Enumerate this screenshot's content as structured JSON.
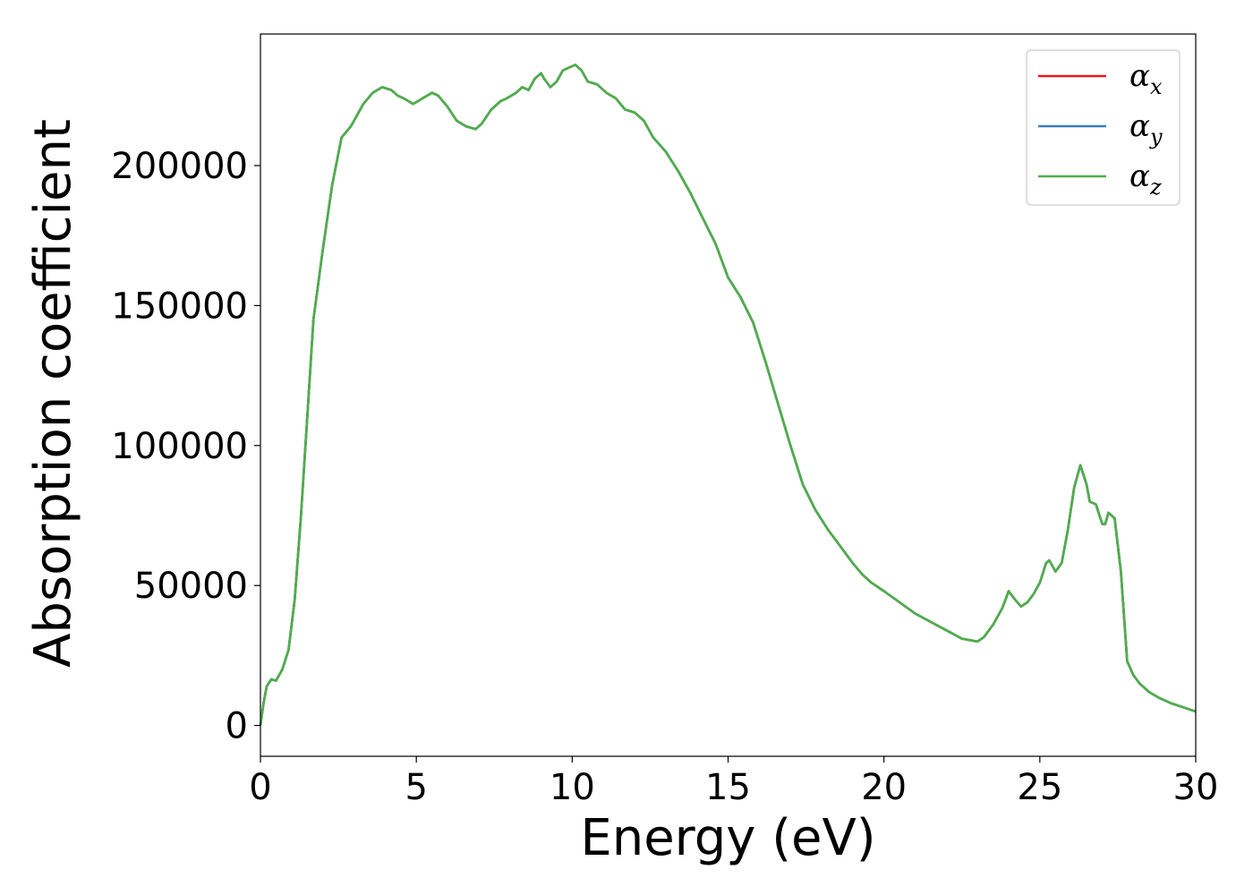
{
  "chart_data": {
    "type": "line",
    "title": "",
    "xlabel": "Energy (eV)",
    "ylabel": "Absorption coefficient",
    "xlim": [
      0,
      30
    ],
    "ylim": [
      -11000,
      247000
    ],
    "xticks": [
      0,
      5,
      10,
      15,
      20,
      25,
      30
    ],
    "xtick_labels": [
      "0",
      "5",
      "10",
      "15",
      "20",
      "25",
      "30"
    ],
    "yticks": [
      0,
      50000,
      100000,
      150000,
      200000
    ],
    "ytick_labels": [
      "0",
      "50000",
      "100000",
      "150000",
      "200000"
    ],
    "grid": false,
    "legend": "top-right",
    "x": [
      0,
      0.1,
      0.2,
      0.35,
      0.5,
      0.7,
      0.9,
      1.1,
      1.3,
      1.5,
      1.7,
      2.0,
      2.3,
      2.6,
      2.9,
      3.1,
      3.3,
      3.6,
      3.9,
      4.2,
      4.4,
      4.6,
      4.9,
      5.2,
      5.5,
      5.7,
      6.0,
      6.3,
      6.6,
      6.9,
      7.1,
      7.4,
      7.7,
      7.9,
      8.2,
      8.4,
      8.6,
      8.8,
      9.0,
      9.1,
      9.3,
      9.5,
      9.7,
      9.9,
      10.1,
      10.3,
      10.5,
      10.8,
      11.1,
      11.4,
      11.7,
      12.0,
      12.3,
      12.6,
      13.0,
      13.4,
      13.8,
      14.2,
      14.6,
      15.0,
      15.4,
      15.8,
      16.2,
      16.6,
      17.0,
      17.4,
      17.8,
      18.2,
      18.6,
      19.0,
      19.3,
      19.6,
      20.0,
      20.5,
      21.0,
      21.5,
      22.0,
      22.5,
      23.0,
      23.2,
      23.5,
      23.8,
      24.0,
      24.2,
      24.4,
      24.6,
      24.8,
      25.0,
      25.2,
      25.3,
      25.5,
      25.7,
      25.9,
      26.1,
      26.3,
      26.5,
      26.6,
      26.8,
      27.0,
      27.1,
      27.2,
      27.4,
      27.6,
      27.8,
      28.0,
      28.2,
      28.5,
      28.8,
      29.2,
      29.6,
      30.0
    ],
    "series": [
      {
        "name": "α",
        "sub": "x",
        "color": "#e41a1c",
        "values": [
          0,
          8000,
          14000,
          16500,
          16000,
          20000,
          27000,
          45000,
          75000,
          110000,
          145000,
          170000,
          193000,
          210000,
          214000,
          218000,
          222000,
          226000,
          228000,
          227000,
          225000,
          224000,
          222000,
          224000,
          226000,
          225000,
          221000,
          216000,
          214000,
          213000,
          215000,
          220000,
          223000,
          224000,
          226000,
          228000,
          227000,
          231000,
          233000,
          231000,
          228000,
          230000,
          234000,
          235000,
          236000,
          234000,
          230000,
          229000,
          226000,
          224000,
          220000,
          219000,
          216000,
          210000,
          205000,
          198000,
          190000,
          181000,
          172000,
          160000,
          153000,
          144000,
          130000,
          115000,
          100000,
          86000,
          77000,
          70000,
          64000,
          58000,
          54000,
          51000,
          48000,
          44000,
          40000,
          37000,
          34000,
          31000,
          30000,
          31500,
          36000,
          42000,
          48000,
          45000,
          42500,
          44000,
          47000,
          51000,
          58000,
          59000,
          55000,
          58000,
          70000,
          85000,
          93000,
          86000,
          80000,
          79000,
          72000,
          72000,
          76000,
          74000,
          55000,
          23000,
          18000,
          15000,
          12000,
          10000,
          8000,
          6500,
          5000
        ]
      },
      {
        "name": "α",
        "sub": "y",
        "color": "#377eb8",
        "values": [
          0,
          8000,
          14000,
          16500,
          16000,
          20000,
          27000,
          45000,
          75000,
          110000,
          145000,
          170000,
          193000,
          210000,
          214000,
          218000,
          222000,
          226000,
          228000,
          227000,
          225000,
          224000,
          222000,
          224000,
          226000,
          225000,
          221000,
          216000,
          214000,
          213000,
          215000,
          220000,
          223000,
          224000,
          226000,
          228000,
          227000,
          231000,
          233000,
          231000,
          228000,
          230000,
          234000,
          235000,
          236000,
          234000,
          230000,
          229000,
          226000,
          224000,
          220000,
          219000,
          216000,
          210000,
          205000,
          198000,
          190000,
          181000,
          172000,
          160000,
          153000,
          144000,
          130000,
          115000,
          100000,
          86000,
          77000,
          70000,
          64000,
          58000,
          54000,
          51000,
          48000,
          44000,
          40000,
          37000,
          34000,
          31000,
          30000,
          31500,
          36000,
          42000,
          48000,
          45000,
          42500,
          44000,
          47000,
          51000,
          58000,
          59000,
          55000,
          58000,
          70000,
          85000,
          93000,
          86000,
          80000,
          79000,
          72000,
          72000,
          76000,
          74000,
          55000,
          23000,
          18000,
          15000,
          12000,
          10000,
          8000,
          6500,
          5000
        ]
      },
      {
        "name": "α",
        "sub": "z",
        "color": "#4daf4a",
        "values": [
          0,
          8000,
          14000,
          16500,
          16000,
          20000,
          27000,
          45000,
          75000,
          110000,
          145000,
          170000,
          193000,
          210000,
          214000,
          218000,
          222000,
          226000,
          228000,
          227000,
          225000,
          224000,
          222000,
          224000,
          226000,
          225000,
          221000,
          216000,
          214000,
          213000,
          215000,
          220000,
          223000,
          224000,
          226000,
          228000,
          227000,
          231000,
          233000,
          231000,
          228000,
          230000,
          234000,
          235000,
          236000,
          234000,
          230000,
          229000,
          226000,
          224000,
          220000,
          219000,
          216000,
          210000,
          205000,
          198000,
          190000,
          181000,
          172000,
          160000,
          153000,
          144000,
          130000,
          115000,
          100000,
          86000,
          77000,
          70000,
          64000,
          58000,
          54000,
          51000,
          48000,
          44000,
          40000,
          37000,
          34000,
          31000,
          30000,
          31500,
          36000,
          42000,
          48000,
          45000,
          42500,
          44000,
          47000,
          51000,
          58000,
          59000,
          55000,
          58000,
          70000,
          85000,
          93000,
          86000,
          80000,
          79000,
          72000,
          72000,
          76000,
          74000,
          55000,
          23000,
          18000,
          15000,
          12000,
          10000,
          8000,
          6500,
          5000
        ]
      }
    ]
  }
}
